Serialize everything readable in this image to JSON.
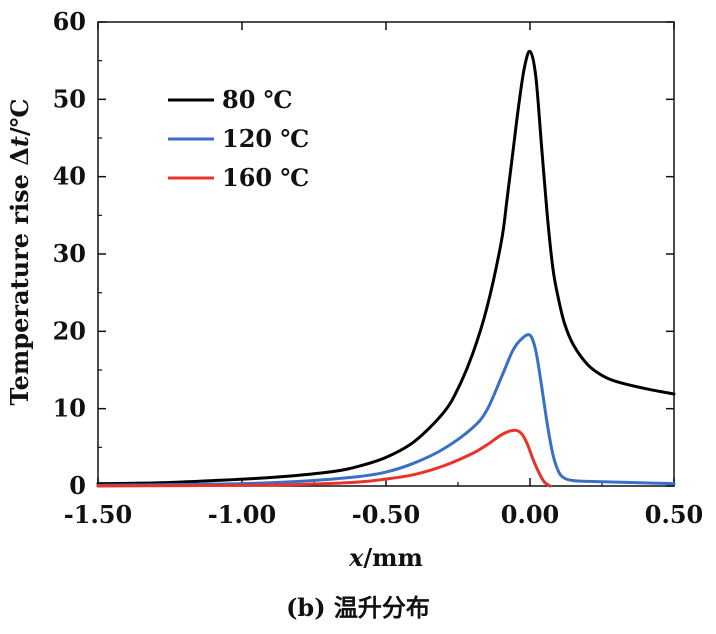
{
  "chart_data": {
    "type": "line",
    "xlabel_italic": "x",
    "xlabel_rest": "/mm",
    "ylabel_prefix": "Temperature rise Δ",
    "ylabel_italic": "t",
    "ylabel_suffix": "/℃",
    "xlim": [
      -1.5,
      0.5
    ],
    "ylim": [
      0,
      60
    ],
    "x_ticks": [
      -1.5,
      -1.0,
      -0.5,
      0.0,
      0.5
    ],
    "x_tick_labels": [
      "-1.50",
      "-1.00",
      "-0.50",
      "0.00",
      "0.50"
    ],
    "y_ticks": [
      0,
      10,
      20,
      30,
      40,
      50,
      60
    ],
    "y_tick_labels": [
      "0",
      "10",
      "20",
      "30",
      "40",
      "50",
      "60"
    ],
    "grid": false,
    "legend_position": "top-left",
    "series": [
      {
        "name": "80 ℃",
        "color": "#000000",
        "x": [
          -1.5,
          -1.3,
          -1.1,
          -0.9,
          -0.7,
          -0.6,
          -0.5,
          -0.4,
          -0.3,
          -0.25,
          -0.2,
          -0.15,
          -0.1,
          -0.08,
          -0.06,
          -0.04,
          -0.02,
          0.0,
          0.02,
          0.04,
          0.06,
          0.08,
          0.1,
          0.12,
          0.15,
          0.2,
          0.25,
          0.3,
          0.4,
          0.5
        ],
        "y": [
          0.3,
          0.4,
          0.7,
          1.1,
          1.8,
          2.5,
          3.7,
          5.8,
          9.5,
          12.6,
          17.0,
          23.0,
          31.5,
          37.0,
          43.0,
          49.0,
          54.0,
          56.2,
          53.0,
          44.0,
          35.0,
          28.0,
          24.0,
          21.0,
          18.3,
          15.7,
          14.3,
          13.5,
          12.6,
          11.9
        ]
      },
      {
        "name": "120 ℃",
        "color": "#3a6fc8",
        "x": [
          -1.5,
          -1.2,
          -1.0,
          -0.8,
          -0.6,
          -0.5,
          -0.4,
          -0.3,
          -0.2,
          -0.15,
          -0.1,
          -0.06,
          -0.03,
          0.0,
          0.02,
          0.04,
          0.06,
          0.08,
          0.1,
          0.12,
          0.15,
          0.2,
          0.3,
          0.5
        ],
        "y": [
          0.1,
          0.2,
          0.3,
          0.6,
          1.2,
          1.8,
          3.0,
          4.8,
          7.5,
          9.8,
          14.0,
          17.5,
          19.0,
          19.5,
          17.5,
          13.0,
          8.0,
          4.0,
          1.8,
          1.0,
          0.7,
          0.6,
          0.5,
          0.3
        ]
      },
      {
        "name": "160 ℃",
        "color": "#e8332a",
        "x": [
          -1.5,
          -1.2,
          -1.0,
          -0.8,
          -0.6,
          -0.5,
          -0.4,
          -0.3,
          -0.2,
          -0.15,
          -0.1,
          -0.07,
          -0.05,
          -0.03,
          -0.01,
          0.01,
          0.03,
          0.05,
          0.07
        ],
        "y": [
          0.0,
          0.05,
          0.1,
          0.2,
          0.5,
          0.9,
          1.5,
          2.6,
          4.2,
          5.3,
          6.6,
          7.1,
          7.2,
          6.8,
          5.5,
          3.5,
          1.8,
          0.5,
          0.0
        ]
      }
    ]
  },
  "caption": "(b) 温升分布"
}
